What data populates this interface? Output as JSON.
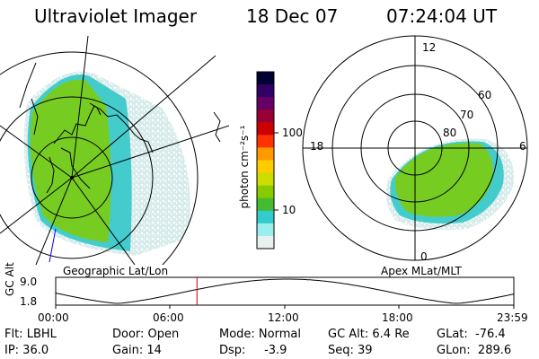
{
  "header": {
    "title": "Ultraviolet Imager",
    "date": "18 Dec 07",
    "time": "07:24:04 UT"
  },
  "left_panel": {
    "label": "Geographic Lat/Lon"
  },
  "right_panel": {
    "label": "Apex MLat/MLT",
    "mlt_labels": [
      "12",
      "18",
      "6",
      "0"
    ],
    "lat_labels": [
      "60",
      "70",
      "80"
    ]
  },
  "colorbar": {
    "unit": "photon cm⁻²s⁻¹",
    "ticks": [
      "100",
      "10"
    ],
    "colors": [
      "#000033",
      "#330066",
      "#660066",
      "#990033",
      "#cc0000",
      "#ff3300",
      "#ff9900",
      "#ffcc00",
      "#ccdd00",
      "#88cc00",
      "#44bb33",
      "#33cccc",
      "#99eeee",
      "#e8f0f0"
    ]
  },
  "timeline": {
    "ylabel": "GC Alt",
    "ymax": "9.0",
    "ymin": "1.8",
    "ticks": [
      "00:00",
      "06:00",
      "12:00",
      "18:00",
      "23:59"
    ],
    "current_time_fraction": 0.3084
  },
  "info": {
    "flt": "Flt: LBHL",
    "ip": "IP: 36.0",
    "door": "Door: Open",
    "gain": "Gain: 14",
    "mode": "Mode: Normal",
    "dsp": "Dsp:     -3.9",
    "gc_alt": "GC Alt: 6.4 Re",
    "seq": "Seq: 39",
    "glat": "GLat:  -76.4",
    "glon": "GLon:  289.6"
  },
  "accent_colors": {
    "marker": "#cc0000",
    "auroral_green": "#66cc22",
    "auroral_cyan": "#33cccc"
  }
}
